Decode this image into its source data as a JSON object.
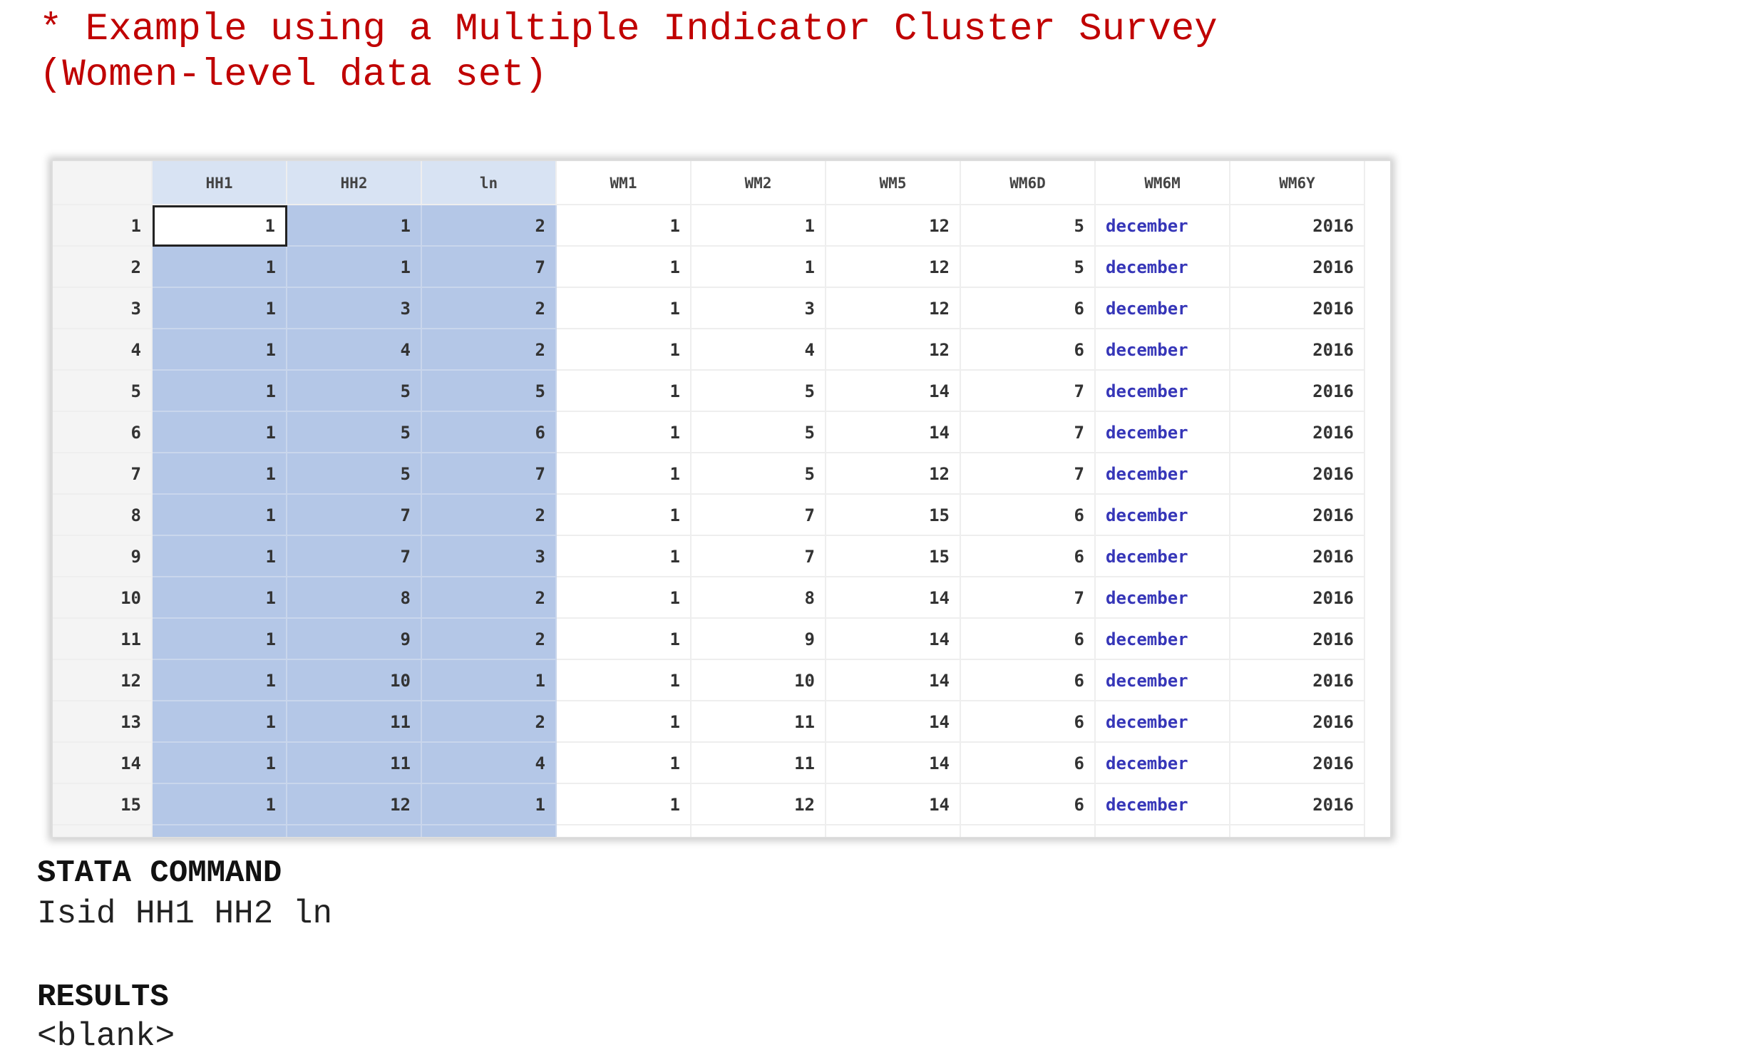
{
  "header": {
    "lines": [
      "* Example using a Multiple Indicator Cluster Survey",
      "(Women-level data set)"
    ]
  },
  "table": {
    "columns": [
      "HH1",
      "HH2",
      "ln",
      "WM1",
      "WM2",
      "WM5",
      "WM6D",
      "WM6M",
      "WM6Y"
    ],
    "rows": [
      [
        1,
        1,
        1,
        2,
        1,
        1,
        12,
        5,
        "december",
        2016
      ],
      [
        2,
        1,
        1,
        7,
        1,
        1,
        12,
        5,
        "december",
        2016
      ],
      [
        3,
        1,
        3,
        2,
        1,
        3,
        12,
        6,
        "december",
        2016
      ],
      [
        4,
        1,
        4,
        2,
        1,
        4,
        12,
        6,
        "december",
        2016
      ],
      [
        5,
        1,
        5,
        5,
        1,
        5,
        14,
        7,
        "december",
        2016
      ],
      [
        6,
        1,
        5,
        6,
        1,
        5,
        14,
        7,
        "december",
        2016
      ],
      [
        7,
        1,
        5,
        7,
        1,
        5,
        12,
        7,
        "december",
        2016
      ],
      [
        8,
        1,
        7,
        2,
        1,
        7,
        15,
        6,
        "december",
        2016
      ],
      [
        9,
        1,
        7,
        3,
        1,
        7,
        15,
        6,
        "december",
        2016
      ],
      [
        10,
        1,
        8,
        2,
        1,
        8,
        14,
        7,
        "december",
        2016
      ],
      [
        11,
        1,
        9,
        2,
        1,
        9,
        14,
        6,
        "december",
        2016
      ],
      [
        12,
        1,
        10,
        1,
        1,
        10,
        14,
        6,
        "december",
        2016
      ],
      [
        13,
        1,
        11,
        2,
        1,
        11,
        14,
        6,
        "december",
        2016
      ],
      [
        14,
        1,
        11,
        4,
        1,
        11,
        14,
        6,
        "december",
        2016
      ],
      [
        15,
        1,
        12,
        1,
        1,
        12,
        14,
        6,
        "december",
        2016
      ]
    ]
  },
  "command": {
    "heading": "STATA COMMAND",
    "text": "Isid HH1 HH2 ln"
  },
  "results": {
    "heading": "RESULTS",
    "text": "<blank>"
  }
}
